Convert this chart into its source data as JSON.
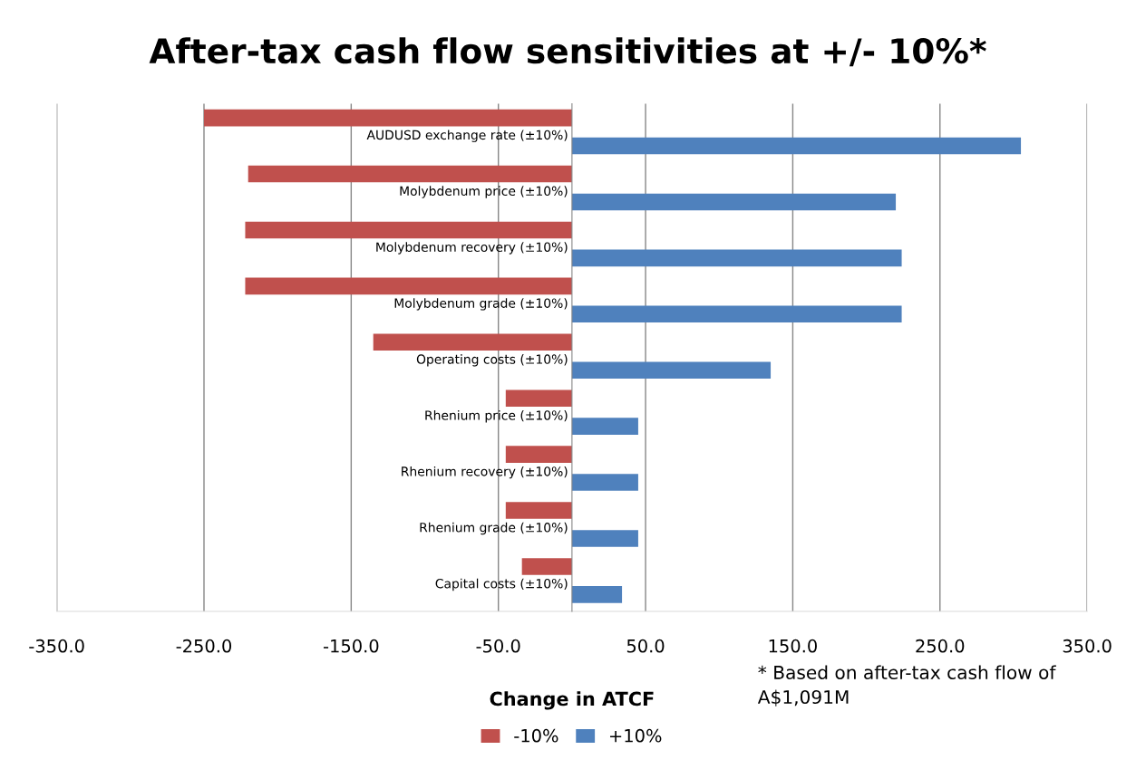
{
  "chart_data": {
    "type": "bar",
    "orientation": "horizontal",
    "title": "After-tax cash flow sensitivities at +/- 10%*",
    "xlabel": "Change in ATCF",
    "categories": [
      "AUDUSD exchange rate (±10%)",
      "Molybdenum price (±10%)",
      "Molybdenum recovery (±10%)",
      "Molybdenum grade (±10%)",
      "Operating costs (±10%)",
      "Rhenium price (±10%)",
      "Rhenium recovery (±10%)",
      "Rhenium grade (±10%)",
      "Capital costs (±10%)"
    ],
    "series": [
      {
        "name": "-10%",
        "color": "#c0504d",
        "values": [
          -250,
          -220,
          -222,
          -222,
          -135,
          -45,
          -45,
          -45,
          -34
        ]
      },
      {
        "name": "+10%",
        "color": "#4f81bd",
        "values": [
          305,
          220,
          224,
          224,
          135,
          45,
          45,
          45,
          34
        ]
      }
    ],
    "xlim": [
      -350,
      350
    ],
    "xticks": [
      {
        "value": -350,
        "label": "-350.0"
      },
      {
        "value": -250,
        "label": "-250.0"
      },
      {
        "value": -150,
        "label": "-150.0"
      },
      {
        "value": -50,
        "label": "-50.0"
      },
      {
        "value": 50,
        "label": "50.0"
      },
      {
        "value": 150,
        "label": "150.0"
      },
      {
        "value": 250,
        "label": "250.0"
      },
      {
        "value": 350,
        "label": "350.0"
      }
    ],
    "grid": "x",
    "legend": "bottom",
    "annotations": [
      "* Based on after-tax cash flow of\nA$1,091M"
    ]
  }
}
